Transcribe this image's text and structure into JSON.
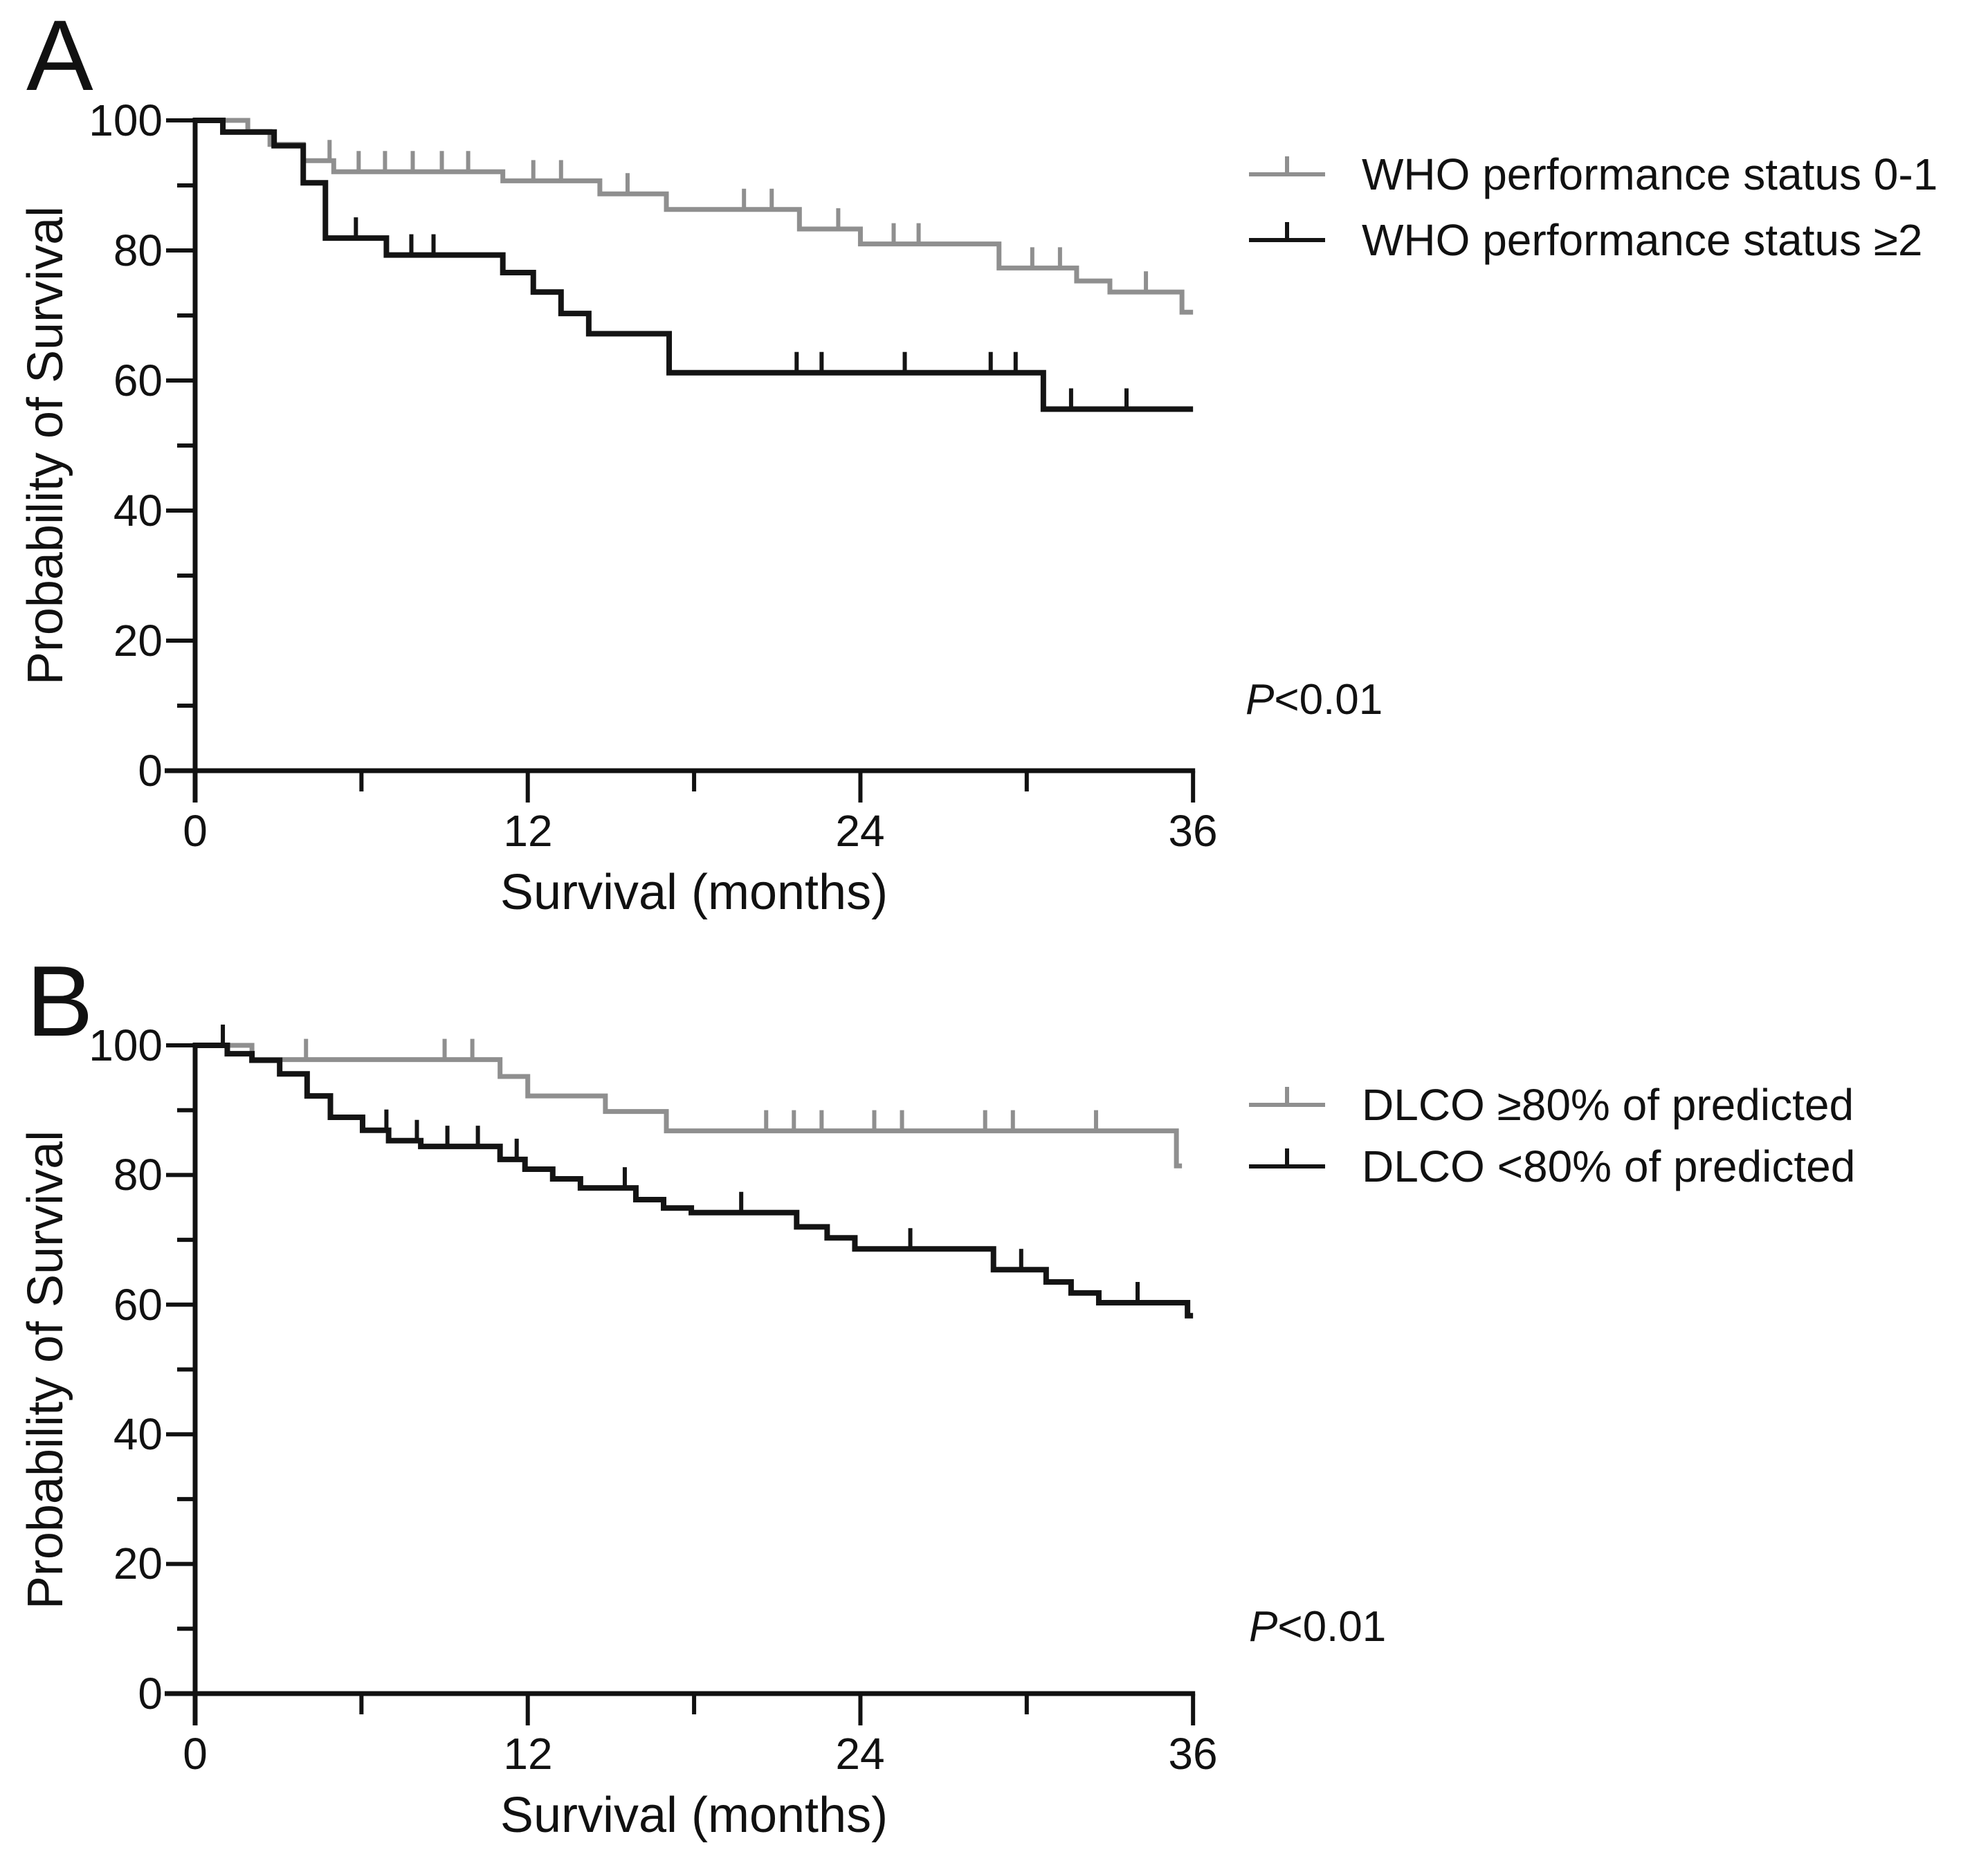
{
  "colors": {
    "gray": "#8f8f8f",
    "black": "#141414"
  },
  "panels": [
    {
      "label": "A",
      "ylabel": "Probability of Survival",
      "xlabel": "Survival (months)",
      "p_italic": "P",
      "p_value": "<0.01",
      "legend": [
        {
          "label": "WHO performance status 0-1",
          "color_key": "gray"
        },
        {
          "label": "WHO performance status ≥2",
          "color_key": "black"
        }
      ],
      "chart_data": {
        "type": "line",
        "subtype": "kaplan-meier-step",
        "title": "",
        "xlabel": "Survival (months)",
        "ylabel": "Probability of Survival",
        "xlim": [
          0,
          36
        ],
        "ylim": [
          0,
          100
        ],
        "xticks": [
          0,
          12,
          24,
          36
        ],
        "xticks_minor": [
          6,
          18,
          30
        ],
        "yticks": [
          100,
          80,
          60,
          40,
          20,
          0
        ],
        "yticks_minor": [
          90,
          70,
          50,
          30,
          10
        ],
        "grid": false,
        "legend_position": "upper right outside",
        "p_annotation": "P<0.01",
        "series": [
          {
            "name": "WHO performance status 0-1",
            "color_key": "gray",
            "end": 36,
            "steps": [
              [
                0,
                100
              ],
              [
                1.9,
                98.3
              ],
              [
                2.7,
                96.3
              ],
              [
                3.9,
                93.8
              ],
              [
                5.0,
                92.1
              ],
              [
                11.1,
                90.7
              ],
              [
                14.6,
                88.7
              ],
              [
                17.0,
                86.3
              ],
              [
                21.8,
                83.3
              ],
              [
                24.0,
                81.0
              ],
              [
                29.0,
                77.3
              ],
              [
                31.8,
                75.3
              ],
              [
                33.0,
                73.6
              ],
              [
                35.6,
                70.5
              ]
            ],
            "censor_times": [
              4.85,
              5.9,
              6.85,
              7.85,
              8.9,
              9.85,
              12.2,
              13.2,
              15.6,
              19.8,
              20.8,
              23.2,
              25.2,
              26.1,
              30.2,
              31.2,
              34.3
            ]
          },
          {
            "name": "WHO performance status ≥2",
            "color_key": "black",
            "end": 36,
            "steps": [
              [
                0,
                100
              ],
              [
                1.0,
                98.2
              ],
              [
                2.85,
                96.1
              ],
              [
                3.9,
                90.4
              ],
              [
                4.7,
                81.9
              ],
              [
                6.9,
                79.3
              ],
              [
                11.1,
                76.6
              ],
              [
                12.2,
                73.6
              ],
              [
                13.2,
                70.3
              ],
              [
                14.2,
                67.2
              ],
              [
                17.1,
                61.2
              ],
              [
                30.6,
                55.6
              ]
            ],
            "censor_times": [
              5.8,
              7.8,
              8.6,
              21.7,
              22.6,
              25.6,
              28.7,
              29.6,
              31.6,
              33.6
            ]
          }
        ]
      }
    },
    {
      "label": "B",
      "ylabel": "Probability of Survival",
      "xlabel": "Survival (months)",
      "p_italic": "P",
      "p_value": "<0.01",
      "legend": [
        {
          "label": "DLCO ≥80% of predicted",
          "color_key": "gray"
        },
        {
          "label": "DLCO <80% of predicted",
          "color_key": "black"
        }
      ],
      "chart_data": {
        "type": "line",
        "subtype": "kaplan-meier-step",
        "title": "",
        "xlabel": "Survival (months)",
        "ylabel": "Probability of Survival",
        "xlim": [
          0,
          36
        ],
        "ylim": [
          0,
          100
        ],
        "xticks": [
          0,
          12,
          24,
          36
        ],
        "xticks_minor": [
          6,
          18,
          30
        ],
        "yticks": [
          100,
          80,
          60,
          40,
          20,
          0
        ],
        "yticks_minor": [
          90,
          70,
          50,
          30,
          10
        ],
        "grid": false,
        "legend_position": "upper right outside",
        "p_annotation": "P<0.01",
        "series": [
          {
            "name": "DLCO ≥80% of predicted",
            "color_key": "gray",
            "end": 35.6,
            "steps": [
              [
                0,
                100
              ],
              [
                2.05,
                97.8
              ],
              [
                11.0,
                95.2
              ],
              [
                12.0,
                92.2
              ],
              [
                14.8,
                89.8
              ],
              [
                17.0,
                86.8
              ],
              [
                35.4,
                81.4
              ]
            ],
            "censor_times": [
              4.0,
              9.0,
              10.0,
              20.6,
              21.6,
              22.6,
              24.5,
              25.5,
              28.5,
              29.5,
              32.5
            ]
          },
          {
            "name": "DLCO <80% of predicted",
            "color_key": "black",
            "end": 36,
            "steps": [
              [
                0,
                100
              ],
              [
                1.16,
                98.7
              ],
              [
                2.05,
                97.7
              ],
              [
                3.05,
                95.6
              ],
              [
                4.04,
                92.2
              ],
              [
                4.88,
                88.9
              ],
              [
                6.04,
                86.9
              ],
              [
                6.98,
                85.3
              ],
              [
                8.14,
                84.4
              ],
              [
                11.0,
                82.4
              ],
              [
                11.9,
                80.9
              ],
              [
                12.9,
                79.4
              ],
              [
                13.9,
                78.0
              ],
              [
                15.9,
                76.2
              ],
              [
                16.9,
                74.9
              ],
              [
                17.9,
                74.2
              ],
              [
                21.7,
                72.0
              ],
              [
                22.8,
                70.3
              ],
              [
                23.8,
                68.6
              ],
              [
                28.8,
                65.4
              ],
              [
                30.7,
                63.5
              ],
              [
                31.6,
                61.8
              ],
              [
                32.6,
                60.3
              ],
              [
                35.8,
                58.3
              ]
            ],
            "censor_times": [
              1.0,
              6.9,
              8.0,
              9.1,
              10.2,
              11.6,
              15.5,
              19.7,
              25.8,
              29.8,
              34.0
            ]
          }
        ]
      }
    }
  ]
}
